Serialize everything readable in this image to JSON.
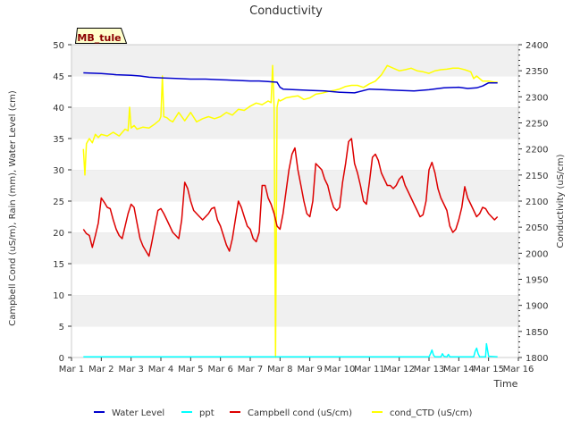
{
  "chart_data": {
    "type": "line",
    "title": "Conductivity",
    "station_label": "MB_tule",
    "xlabel": "Time",
    "ylabel_left": "Campbell Cond (uS/m), Rain (mm), Water Level (cm)",
    "ylabel_right": "Conductivity (uS/cm)",
    "x_ticks": [
      "Mar 1",
      "Mar 2",
      "Mar 3",
      "Mar 4",
      "Mar 5",
      "Mar 6",
      "Mar 7",
      "Mar 8",
      "Mar 9",
      "Mar 10",
      "Mar 11",
      "Mar 12",
      "Mar 13",
      "Mar 14",
      "Mar 15",
      "Mar 16"
    ],
    "xlim": [
      1,
      16
    ],
    "ylim_left": [
      0,
      50
    ],
    "yticks_left": [
      0,
      5,
      10,
      15,
      20,
      25,
      30,
      35,
      40,
      45,
      50
    ],
    "ylim_right": [
      1800,
      2400
    ],
    "yticks_right": [
      1800,
      1850,
      1900,
      1950,
      2000,
      2050,
      2100,
      2150,
      2200,
      2250,
      2300,
      2350,
      2400
    ],
    "grid": "horizontal bands",
    "legend_position": "bottom",
    "series": [
      {
        "name": "Water Level",
        "axis": "left",
        "color": "#0000cc",
        "x": [
          1.4,
          2.0,
          2.5,
          3.0,
          3.3,
          3.6,
          4.0,
          4.5,
          5.0,
          5.5,
          6.0,
          6.5,
          7.0,
          7.3,
          7.6,
          7.9,
          8.0,
          8.1,
          8.5,
          9.0,
          9.5,
          10.0,
          10.5,
          11.0,
          11.5,
          12.0,
          12.5,
          13.0,
          13.5,
          14.0,
          14.3,
          14.6,
          14.8,
          15.0,
          15.3
        ],
        "y": [
          45.5,
          45.4,
          45.2,
          45.1,
          45.0,
          44.8,
          44.7,
          44.6,
          44.5,
          44.5,
          44.4,
          44.3,
          44.2,
          44.2,
          44.1,
          44.0,
          43.2,
          42.9,
          42.8,
          42.7,
          42.6,
          42.4,
          42.3,
          42.9,
          42.8,
          42.7,
          42.6,
          42.8,
          43.1,
          43.2,
          43.0,
          43.1,
          43.4,
          43.9,
          43.9
        ]
      },
      {
        "name": "ppt",
        "axis": "left",
        "color": "#00ffff",
        "x": [
          1.4,
          13.0,
          13.05,
          13.1,
          13.15,
          13.2,
          13.4,
          13.45,
          13.5,
          13.6,
          13.65,
          13.7,
          14.0,
          14.5,
          14.55,
          14.6,
          14.65,
          14.7,
          14.9,
          14.93,
          14.96,
          15.0,
          15.3
        ],
        "y": [
          0.1,
          0.1,
          0.6,
          1.2,
          0.4,
          0.1,
          0.1,
          0.6,
          0.2,
          0.1,
          0.5,
          0.1,
          0.1,
          0.1,
          1.0,
          1.5,
          0.6,
          0.1,
          0.1,
          2.2,
          1.4,
          0.2,
          0.1
        ]
      },
      {
        "name": "Campbell cond (uS/cm)",
        "axis": "left",
        "color": "#dd0000",
        "x": [
          1.4,
          1.5,
          1.6,
          1.7,
          1.8,
          1.9,
          2.0,
          2.1,
          2.2,
          2.3,
          2.4,
          2.5,
          2.6,
          2.7,
          2.8,
          2.9,
          3.0,
          3.1,
          3.2,
          3.3,
          3.4,
          3.5,
          3.6,
          3.7,
          3.8,
          3.9,
          4.0,
          4.1,
          4.2,
          4.3,
          4.4,
          4.5,
          4.6,
          4.7,
          4.8,
          4.9,
          5.0,
          5.1,
          5.2,
          5.3,
          5.4,
          5.5,
          5.6,
          5.7,
          5.8,
          5.9,
          6.0,
          6.1,
          6.2,
          6.3,
          6.4,
          6.5,
          6.6,
          6.7,
          6.8,
          6.9,
          7.0,
          7.1,
          7.2,
          7.3,
          7.4,
          7.5,
          7.6,
          7.7,
          7.8,
          7.9,
          8.0,
          8.1,
          8.2,
          8.3,
          8.4,
          8.5,
          8.6,
          8.7,
          8.8,
          8.9,
          9.0,
          9.1,
          9.2,
          9.3,
          9.4,
          9.5,
          9.6,
          9.7,
          9.8,
          9.9,
          10.0,
          10.1,
          10.2,
          10.3,
          10.4,
          10.5,
          10.6,
          10.7,
          10.8,
          10.9,
          11.0,
          11.1,
          11.2,
          11.3,
          11.4,
          11.5,
          11.6,
          11.7,
          11.8,
          11.9,
          12.0,
          12.1,
          12.2,
          12.3,
          12.4,
          12.5,
          12.6,
          12.7,
          12.8,
          12.9,
          13.0,
          13.1,
          13.2,
          13.3,
          13.4,
          13.5,
          13.6,
          13.7,
          13.8,
          13.9,
          14.0,
          14.1,
          14.2,
          14.3,
          14.4,
          14.5,
          14.6,
          14.7,
          14.8,
          14.9,
          15.0,
          15.1,
          15.2,
          15.3
        ],
        "y": [
          20.5,
          19.8,
          19.5,
          17.6,
          19.5,
          21.5,
          25.5,
          24.8,
          24.0,
          23.8,
          22.0,
          20.5,
          19.5,
          19.0,
          21.0,
          23.0,
          24.5,
          24.0,
          21.5,
          19.0,
          17.8,
          17.0,
          16.2,
          18.5,
          21.0,
          23.5,
          23.8,
          23.0,
          22.0,
          21.0,
          20.0,
          19.5,
          19.0,
          22.0,
          28.0,
          27.0,
          25.0,
          23.5,
          23.0,
          22.5,
          22.0,
          22.5,
          23.0,
          23.8,
          24.0,
          22.0,
          21.0,
          19.5,
          18.0,
          17.0,
          19.0,
          22.0,
          25.0,
          24.0,
          22.5,
          21.0,
          20.5,
          19.0,
          18.5,
          20.0,
          27.5,
          27.5,
          25.5,
          24.5,
          23.0,
          21.0,
          20.5,
          23.0,
          26.5,
          30.0,
          32.5,
          33.5,
          30.0,
          27.5,
          25.0,
          23.0,
          22.5,
          25.0,
          31.0,
          30.5,
          30.0,
          28.5,
          27.5,
          25.5,
          24.0,
          23.5,
          24.0,
          28.0,
          31.0,
          34.5,
          35.0,
          31.0,
          29.5,
          27.5,
          25.0,
          24.5,
          28.0,
          32.0,
          32.5,
          31.5,
          29.5,
          28.5,
          27.5,
          27.5,
          27.0,
          27.5,
          28.5,
          29.0,
          27.5,
          26.5,
          25.5,
          24.5,
          23.5,
          22.5,
          22.8,
          25.0,
          30.0,
          31.2,
          29.5,
          27.0,
          25.5,
          24.5,
          23.5,
          21.0,
          20.0,
          20.5,
          22.0,
          24.0,
          27.3,
          25.5,
          24.5,
          23.5,
          22.5,
          23.0,
          24.0,
          23.8,
          23.0,
          22.5,
          22.0,
          22.5
        ]
      },
      {
        "name": "cond_CTD (uS/cm)",
        "axis": "right",
        "color": "#ffff00",
        "x": [
          1.4,
          1.45,
          1.5,
          1.55,
          1.6,
          1.7,
          1.8,
          1.9,
          2.0,
          2.2,
          2.4,
          2.6,
          2.8,
          2.9,
          2.95,
          3.0,
          3.1,
          3.2,
          3.4,
          3.6,
          3.8,
          3.95,
          4.0,
          4.05,
          4.1,
          4.2,
          4.3,
          4.4,
          4.6,
          4.8,
          5.0,
          5.2,
          5.4,
          5.6,
          5.8,
          6.0,
          6.2,
          6.4,
          6.6,
          6.8,
          7.0,
          7.2,
          7.4,
          7.6,
          7.7,
          7.75,
          7.8,
          7.85,
          7.9,
          7.95,
          8.0,
          8.1,
          8.2,
          8.4,
          8.6,
          8.8,
          9.0,
          9.2,
          9.4,
          9.6,
          9.8,
          10.0,
          10.2,
          10.4,
          10.6,
          10.8,
          11.0,
          11.2,
          11.4,
          11.6,
          11.8,
          12.0,
          12.2,
          12.4,
          12.6,
          12.8,
          13.0,
          13.2,
          13.4,
          13.6,
          13.8,
          14.0,
          14.2,
          14.4,
          14.5,
          14.6,
          14.8,
          15.0,
          15.2,
          15.3
        ],
        "y": [
          2200,
          2150,
          2210,
          2215,
          2220,
          2212,
          2228,
          2222,
          2228,
          2225,
          2232,
          2225,
          2238,
          2235,
          2280,
          2240,
          2245,
          2238,
          2242,
          2240,
          2248,
          2255,
          2262,
          2340,
          2262,
          2260,
          2255,
          2252,
          2270,
          2254,
          2270,
          2252,
          2258,
          2262,
          2258,
          2262,
          2270,
          2265,
          2276,
          2274,
          2282,
          2288,
          2285,
          2292,
          2289,
          2360,
          2280,
          1800,
          2280,
          2295,
          2292,
          2295,
          2298,
          2300,
          2302,
          2295,
          2298,
          2305,
          2307,
          2310,
          2312,
          2315,
          2320,
          2322,
          2322,
          2318,
          2325,
          2330,
          2342,
          2360,
          2355,
          2350,
          2352,
          2355,
          2350,
          2348,
          2345,
          2350,
          2352,
          2353,
          2355,
          2355,
          2352,
          2348,
          2335,
          2340,
          2330,
          2330,
          2328,
          2328
        ]
      }
    ]
  }
}
